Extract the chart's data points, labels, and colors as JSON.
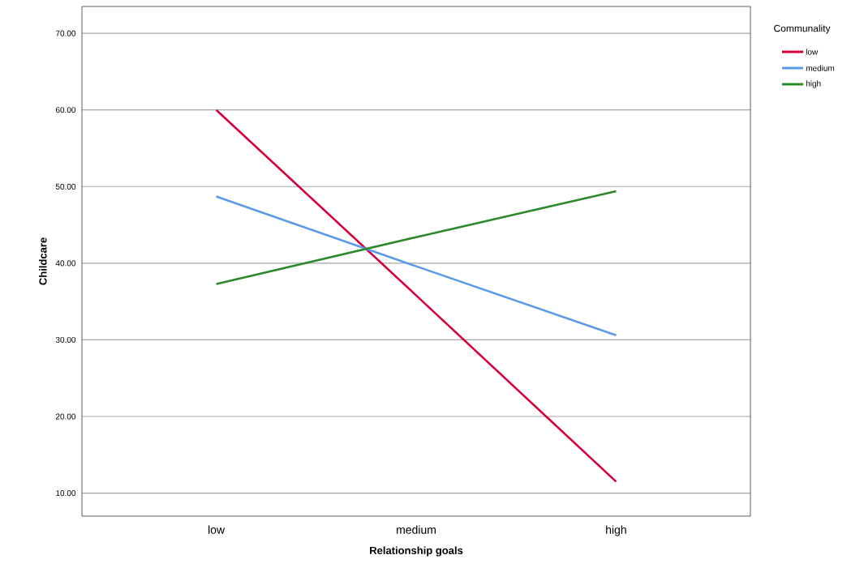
{
  "chart_data": {
    "type": "line",
    "xlabel": "Relationship goals",
    "ylabel": "Childcare",
    "legend_title": "Communality",
    "categories": [
      "low",
      "medium",
      "high"
    ],
    "series": [
      {
        "name": "low",
        "color": "#d5003a",
        "values": [
          60.0,
          35.8,
          11.5
        ]
      },
      {
        "name": "medium",
        "color": "#5b9be6",
        "values": [
          48.7,
          39.6,
          30.6
        ]
      },
      {
        "name": "high",
        "color": "#2a8a2a",
        "values": [
          37.3,
          43.4,
          49.4
        ]
      }
    ],
    "ylim": [
      7,
      73.5
    ],
    "yticks": [
      {
        "value": 10,
        "label": "10.00"
      },
      {
        "value": 20,
        "label": "20.00"
      },
      {
        "value": 30,
        "label": "30.00"
      },
      {
        "value": 40,
        "label": "40.00"
      },
      {
        "value": 50,
        "label": "50.00"
      },
      {
        "value": 60,
        "label": "60.00"
      },
      {
        "value": 70,
        "label": "70.00"
      }
    ],
    "grid": "y",
    "legend": "top right",
    "marker": "none",
    "line_style": "solid"
  }
}
